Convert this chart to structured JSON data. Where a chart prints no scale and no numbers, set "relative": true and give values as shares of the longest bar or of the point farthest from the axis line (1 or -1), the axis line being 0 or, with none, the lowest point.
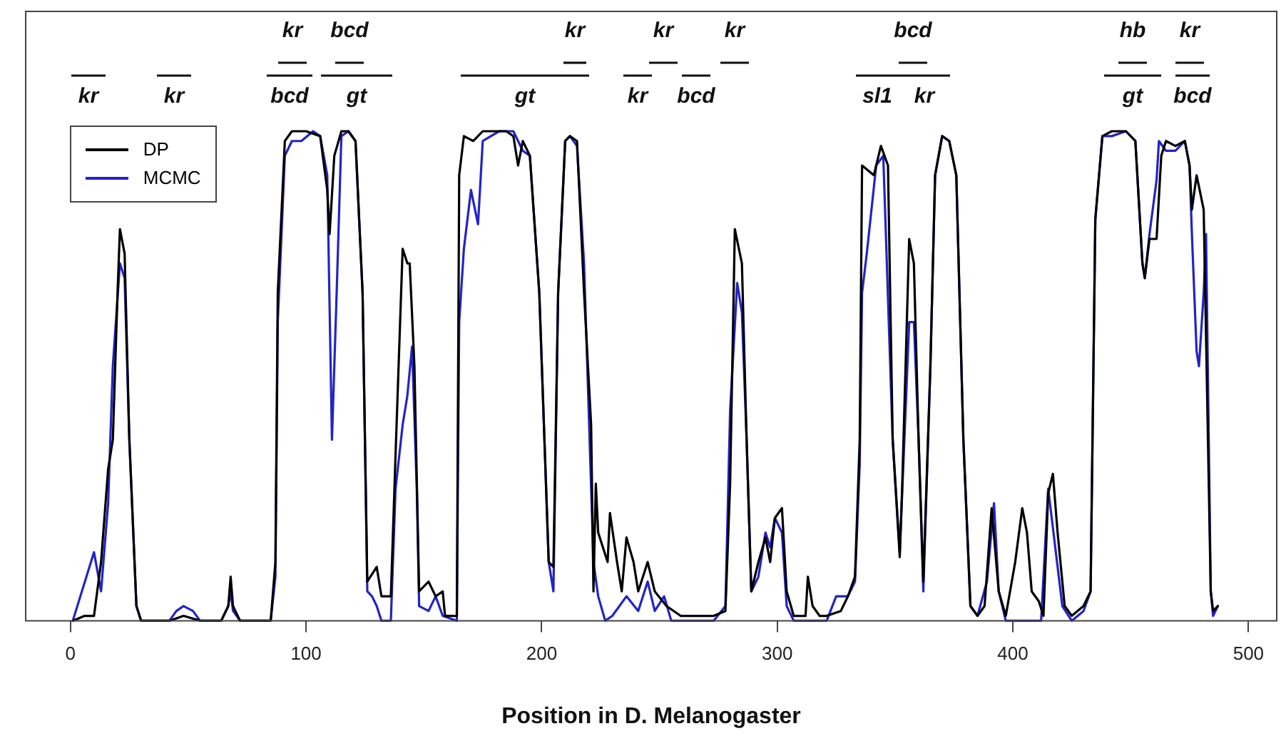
{
  "chart_data": {
    "type": "line",
    "relative": true,
    "xlabel": "Position in D. Melanogaster",
    "xlim": [
      -19,
      512
    ],
    "xticks": [
      0,
      100,
      200,
      300,
      400,
      500
    ],
    "grid": false,
    "legend": "top left",
    "marker": "none",
    "line_style": "solid",
    "series": [
      {
        "name": "DP",
        "color": "#000000",
        "x": [
          1,
          6,
          10,
          13,
          16,
          18,
          20,
          21,
          23,
          25,
          28,
          30,
          42,
          48,
          55,
          64,
          67,
          68,
          69,
          72,
          85,
          87,
          88,
          91,
          94,
          100,
          106,
          109,
          110,
          112,
          115,
          118,
          121,
          124,
          126,
          130,
          132,
          136,
          138,
          141,
          143,
          144,
          146,
          148,
          152,
          155,
          158,
          159,
          164,
          165,
          167,
          171,
          175,
          185,
          188,
          190,
          192,
          195,
          199,
          203,
          205,
          207,
          210,
          212,
          215,
          218,
          221,
          222,
          223,
          224,
          228,
          229,
          232,
          234,
          236,
          239,
          241,
          245,
          248,
          253,
          259,
          273,
          278,
          280,
          282,
          285,
          287,
          289,
          292,
          295,
          297,
          299,
          302,
          304,
          307,
          312,
          313,
          315,
          318,
          321,
          327,
          330,
          333,
          335,
          336,
          341,
          344,
          347,
          349,
          352,
          353,
          356,
          358,
          360,
          362,
          365,
          367,
          370,
          373,
          376,
          379,
          382,
          385,
          388,
          391,
          394,
          397,
          401,
          404,
          406,
          408,
          411,
          413,
          415,
          417,
          419,
          422,
          425,
          430,
          433,
          435,
          438,
          442,
          448,
          452,
          455,
          456,
          458,
          461,
          463,
          465,
          469,
          473,
          475,
          476,
          478,
          481,
          484,
          485,
          487
        ],
        "values": [
          0,
          0.01,
          0.01,
          0.12,
          0.31,
          0.37,
          0.67,
          0.8,
          0.75,
          0.37,
          0.03,
          0,
          0,
          0.01,
          0,
          0,
          0.03,
          0.09,
          0.03,
          0,
          0,
          0.12,
          0.67,
          0.98,
          1,
          1,
          0.99,
          0.88,
          0.79,
          0.95,
          1,
          1,
          0.98,
          0.67,
          0.08,
          0.11,
          0.05,
          0.05,
          0.34,
          0.76,
          0.73,
          0.73,
          0.52,
          0.06,
          0.08,
          0.05,
          0.06,
          0.01,
          0.01,
          0.91,
          0.99,
          0.98,
          1,
          1,
          0.99,
          0.93,
          0.98,
          0.95,
          0.67,
          0.12,
          0.11,
          0.67,
          0.98,
          0.99,
          0.98,
          0.67,
          0.4,
          0.06,
          0.28,
          0.18,
          0.12,
          0.22,
          0.12,
          0.06,
          0.17,
          0.12,
          0.06,
          0.12,
          0.06,
          0.03,
          0.01,
          0.01,
          0.02,
          0.28,
          0.8,
          0.73,
          0.37,
          0.06,
          0.12,
          0.17,
          0.12,
          0.21,
          0.23,
          0.06,
          0.01,
          0.01,
          0.09,
          0.03,
          0.01,
          0.01,
          0.02,
          0.05,
          0.09,
          0.37,
          0.93,
          0.91,
          0.97,
          0.93,
          0.37,
          0.13,
          0.27,
          0.78,
          0.73,
          0.37,
          0.08,
          0.52,
          0.91,
          0.99,
          0.98,
          0.91,
          0.37,
          0.03,
          0.01,
          0.03,
          0.23,
          0.06,
          0.01,
          0.12,
          0.23,
          0.18,
          0.06,
          0.04,
          0.01,
          0.26,
          0.3,
          0.18,
          0.03,
          0.01,
          0.03,
          0.06,
          0.82,
          0.99,
          1,
          1,
          0.98,
          0.73,
          0.7,
          0.78,
          0.78,
          0.95,
          0.98,
          0.97,
          0.98,
          0.93,
          0.84,
          0.91,
          0.84,
          0.06,
          0.02,
          0.03
        ]
      },
      {
        "name": "MCMC",
        "color": "#2323c8",
        "x": [
          1,
          10,
          13,
          16,
          18,
          21,
          23,
          25,
          28,
          30,
          42,
          45,
          48,
          52,
          55,
          64,
          67,
          68,
          69,
          72,
          85,
          87,
          88,
          91,
          94,
          98,
          103,
          106,
          109,
          111,
          113,
          115,
          118,
          121,
          124,
          126,
          128,
          130,
          132,
          136,
          138,
          141,
          143,
          145,
          147,
          148,
          152,
          155,
          158,
          164,
          165,
          167,
          170,
          173,
          175,
          182,
          188,
          192,
          195,
          199,
          203,
          205,
          207,
          210,
          212,
          215,
          218,
          222,
          224,
          227,
          230,
          236,
          241,
          245,
          248,
          252,
          255,
          273,
          278,
          280,
          283,
          285,
          287,
          289,
          292,
          295,
          297,
          299,
          302,
          304,
          307,
          321,
          325,
          330,
          333,
          335,
          336,
          338,
          342,
          345,
          349,
          352,
          356,
          358,
          360,
          362,
          365,
          367,
          370,
          373,
          376,
          379,
          382,
          385,
          389,
          392,
          394,
          397,
          412,
          415,
          418,
          421,
          425,
          430,
          433,
          435,
          438,
          442,
          448,
          452,
          455,
          456,
          458,
          461,
          462,
          465,
          469,
          473,
          475,
          476,
          478,
          479,
          481,
          482,
          484,
          485,
          487
        ],
        "values": [
          0,
          0.14,
          0.06,
          0.24,
          0.52,
          0.73,
          0.7,
          0.37,
          0.03,
          0,
          0,
          0.02,
          0.03,
          0.02,
          0,
          0,
          0.03,
          0.06,
          0.02,
          0,
          0,
          0.09,
          0.61,
          0.95,
          0.98,
          0.98,
          1,
          0.99,
          0.91,
          0.37,
          0.67,
          0.99,
          1,
          0.98,
          0.67,
          0.06,
          0.05,
          0.03,
          0,
          0,
          0.27,
          0.4,
          0.46,
          0.56,
          0.27,
          0.03,
          0.02,
          0.05,
          0.01,
          0,
          0.61,
          0.76,
          0.88,
          0.81,
          0.98,
          1,
          1,
          0.96,
          0.95,
          0.67,
          0.12,
          0.06,
          0.67,
          0.98,
          0.99,
          0.97,
          0.73,
          0.12,
          0.05,
          0,
          0.01,
          0.05,
          0.02,
          0.08,
          0.02,
          0.05,
          0,
          0,
          0.03,
          0.43,
          0.69,
          0.63,
          0.37,
          0.06,
          0.09,
          0.18,
          0.15,
          0.21,
          0.18,
          0.03,
          0,
          0,
          0.05,
          0.05,
          0.08,
          0.32,
          0.67,
          0.75,
          0.93,
          0.95,
          0.37,
          0.14,
          0.61,
          0.61,
          0.37,
          0.06,
          0.52,
          0.91,
          0.99,
          0.98,
          0.91,
          0.37,
          0.03,
          0.01,
          0.08,
          0.24,
          0.06,
          0,
          0,
          0.27,
          0.15,
          0.03,
          0,
          0.02,
          0.06,
          0.82,
          0.99,
          0.99,
          1,
          0.98,
          0.73,
          0.7,
          0.79,
          0.9,
          0.98,
          0.96,
          0.96,
          0.98,
          0.93,
          0.79,
          0.55,
          0.52,
          0.67,
          0.79,
          0.06,
          0.01,
          0.03
        ]
      }
    ],
    "annotations": [
      "kr",
      "kr",
      "bcd",
      "gt",
      "gt",
      "kr",
      "bcd",
      "sl1",
      "kr",
      "gt",
      "bcd",
      "kr",
      "bcd",
      "kr",
      "kr",
      "kr",
      "bcd",
      "hb",
      "kr"
    ]
  }
}
